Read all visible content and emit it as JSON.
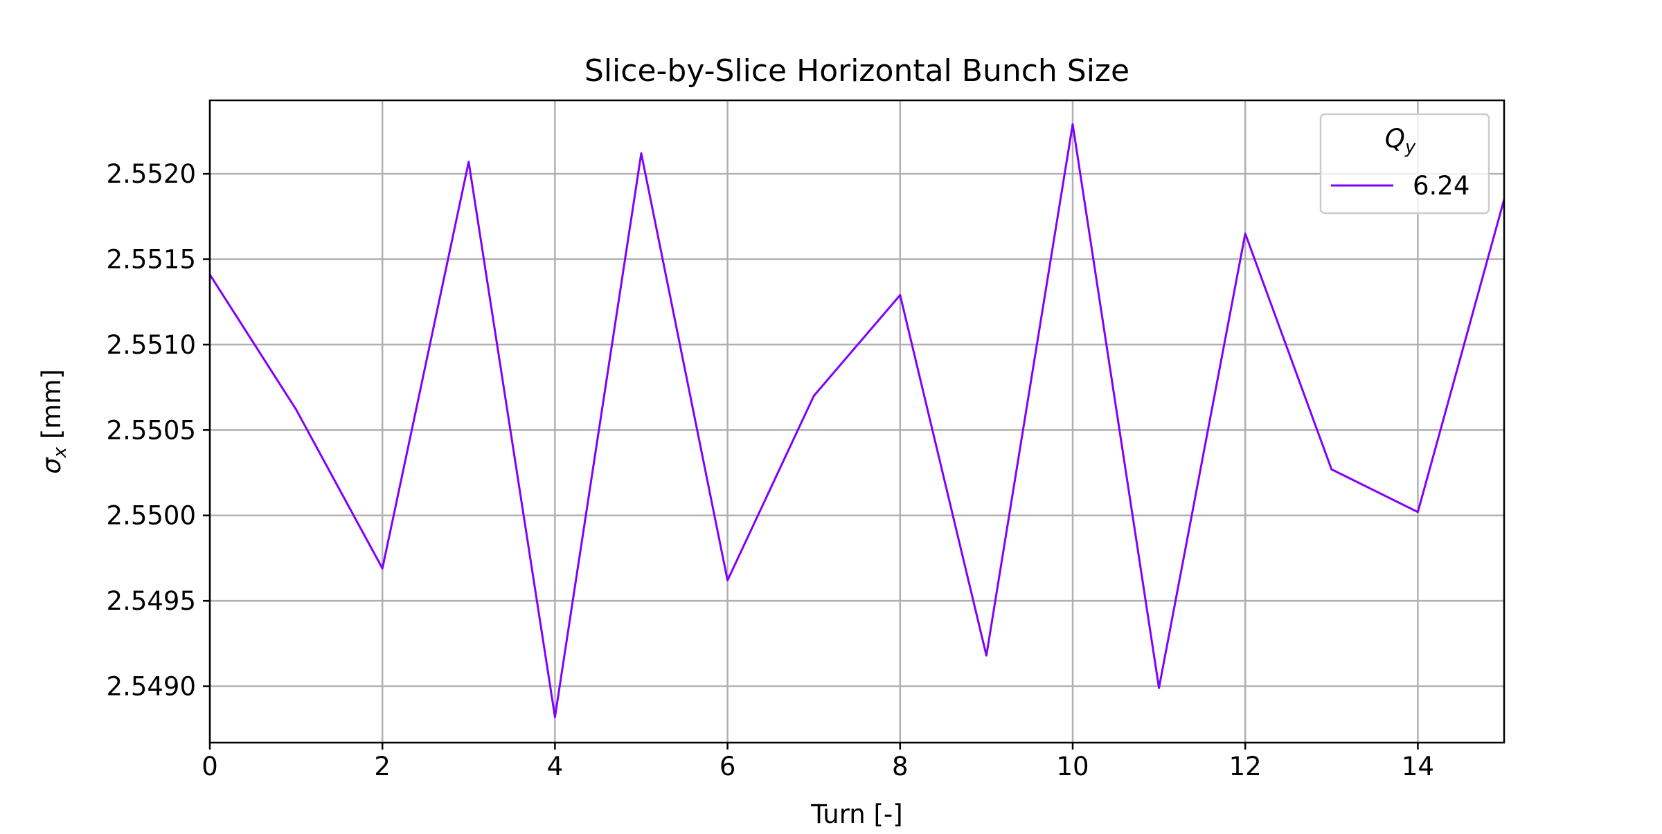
{
  "chart_data": {
    "type": "line",
    "title": "Slice-by-Slice Horizontal Bunch Size",
    "xlabel": "Turn [-]",
    "ylabel": {
      "base": "σ",
      "subscript": "x",
      "suffix": " [mm]"
    },
    "xlim": [
      0,
      15
    ],
    "ylim": [
      2.54867,
      2.55243
    ],
    "xticks": [
      0,
      2,
      4,
      6,
      8,
      10,
      12,
      14
    ],
    "xtick_labels": [
      "0",
      "2",
      "4",
      "6",
      "8",
      "10",
      "12",
      "14"
    ],
    "yticks": [
      2.549,
      2.5495,
      2.55,
      2.5505,
      2.551,
      2.5515,
      2.552
    ],
    "ytick_labels": [
      "2.5490",
      "2.5495",
      "2.5500",
      "2.5505",
      "2.5510",
      "2.5515",
      "2.5520"
    ],
    "grid": true,
    "legend": {
      "title": {
        "base": "Q",
        "subscript": "y"
      },
      "placement": "top-right"
    },
    "series": [
      {
        "name": "6.24",
        "color": "#8000ff",
        "x": [
          0,
          1,
          2,
          3,
          4,
          5,
          6,
          7,
          8,
          9,
          10,
          11,
          12,
          13,
          14,
          15
        ],
        "values": [
          2.55141,
          2.55062,
          2.54969,
          2.55207,
          2.54882,
          2.55212,
          2.54962,
          2.5507,
          2.55129,
          2.54918,
          2.55229,
          2.54899,
          2.55165,
          2.55027,
          2.55002,
          2.55185
        ]
      }
    ]
  }
}
